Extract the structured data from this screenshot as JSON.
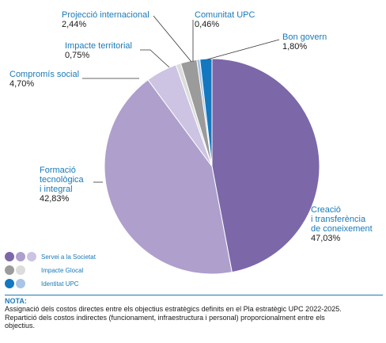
{
  "chart_data": {
    "type": "pie",
    "slices": [
      {
        "name": "Creació\ni transferència\nde coneixement",
        "value": 47.03,
        "value_label": "47,03%",
        "color": "#7c67a9"
      },
      {
        "name": "Formació\ntecnològica\ni integral",
        "value": 42.83,
        "value_label": "42,83%",
        "color": "#ae9fcc"
      },
      {
        "name": "Compromís social",
        "value": 4.7,
        "value_label": "4,70%",
        "color": "#cdc3e2"
      },
      {
        "name": "Impacte territorial",
        "value": 0.75,
        "value_label": "0,75%",
        "color": "#dcdcdc"
      },
      {
        "name": "Projecció internacional",
        "value": 2.44,
        "value_label": "2,44%",
        "color": "#9b9b9b"
      },
      {
        "name": "Comunitat UPC",
        "value": 0.46,
        "value_label": "0,46%",
        "color": "#a9c4e4"
      },
      {
        "name": "Bon govern",
        "value": 1.8,
        "value_label": "1,80%",
        "color": "#1378c0"
      }
    ],
    "start": "12 o'clock",
    "direction": "clockwise"
  },
  "legend": [
    {
      "label": "Servei a la Societat",
      "colors": [
        "#7c67a9",
        "#ae9fcc",
        "#cdc3e2"
      ]
    },
    {
      "label": "Impacte Glocal",
      "colors": [
        "#9b9b9b",
        "#dcdcdc"
      ]
    },
    {
      "label": "Identitat UPC",
      "colors": [
        "#1378c0",
        "#a9c4e4"
      ]
    }
  ],
  "note": {
    "title": "NOTA:",
    "lines": [
      "Assignació dels costos directes entre els objectius estratègics definits en el Pla estratègic UPC 2022-2025.",
      "Repartició dels costos indirectes (funcionament, infraestructura i personal) proporcionalment entre els",
      "objectius."
    ]
  }
}
